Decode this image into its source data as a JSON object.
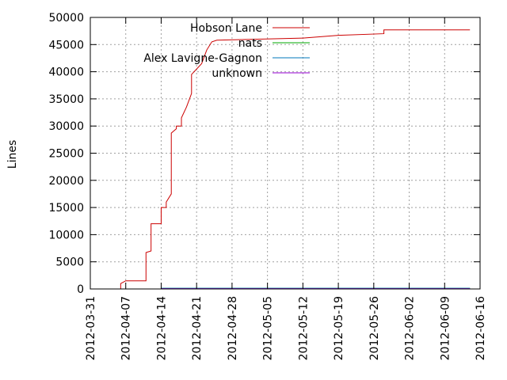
{
  "chart_data": {
    "type": "line",
    "title": "",
    "xlabel": "",
    "ylabel": "Lines",
    "ylim": [
      0,
      50000
    ],
    "yticks": [
      "0",
      "5000",
      "10000",
      "15000",
      "20000",
      "25000",
      "30000",
      "35000",
      "40000",
      "45000",
      "50000"
    ],
    "xlim": [
      "2012-03-31",
      "2012-06-16"
    ],
    "xticks": [
      "2012-03-31",
      "2012-04-07",
      "2012-04-14",
      "2012-04-21",
      "2012-04-28",
      "2012-05-05",
      "2012-05-12",
      "2012-05-19",
      "2012-05-26",
      "2012-06-02",
      "2012-06-09",
      "2012-06-16"
    ],
    "grid": true,
    "legend_position": "top",
    "series": [
      {
        "name": "Hobson Lane",
        "color": "#cc0000",
        "points": [
          [
            "2012-04-05",
            0
          ],
          [
            "2012-04-06",
            0
          ],
          [
            "2012-04-06",
            1000
          ],
          [
            "2012-04-07",
            1500
          ],
          [
            "2012-04-11",
            1500
          ],
          [
            "2012-04-11",
            2000
          ],
          [
            "2012-04-11",
            2500
          ],
          [
            "2012-04-11",
            6700
          ],
          [
            "2012-04-12",
            7000
          ],
          [
            "2012-04-12",
            12000
          ],
          [
            "2012-04-14",
            12000
          ],
          [
            "2012-04-14",
            15000
          ],
          [
            "2012-04-15",
            15000
          ],
          [
            "2012-04-15",
            16000
          ],
          [
            "2012-04-16",
            17500
          ],
          [
            "2012-04-16",
            28700
          ],
          [
            "2012-04-17",
            29500
          ],
          [
            "2012-04-17",
            30000
          ],
          [
            "2012-04-18",
            30000
          ],
          [
            "2012-04-18",
            31500
          ],
          [
            "2012-04-19",
            33500
          ],
          [
            "2012-04-20",
            36000
          ],
          [
            "2012-04-20",
            39500
          ],
          [
            "2012-04-22",
            41500
          ],
          [
            "2012-04-23",
            44000
          ],
          [
            "2012-04-24",
            45500
          ],
          [
            "2012-04-25",
            45800
          ],
          [
            "2012-05-12",
            46200
          ],
          [
            "2012-05-19",
            46700
          ],
          [
            "2012-05-28",
            47000
          ],
          [
            "2012-05-28",
            47700
          ],
          [
            "2012-06-14",
            47700
          ]
        ]
      },
      {
        "name": "nats",
        "color": "#00aa00",
        "points": [
          [
            "2012-04-14",
            100
          ],
          [
            "2012-06-14",
            100
          ]
        ]
      },
      {
        "name": "Alex Lavigne-Gagnon",
        "color": "#0077bb",
        "points": [
          [
            "2012-04-14",
            120
          ],
          [
            "2012-06-14",
            120
          ]
        ]
      },
      {
        "name": "unknown",
        "color": "#9400d3",
        "points": [
          [
            "2012-04-14",
            60
          ],
          [
            "2012-06-14",
            60
          ]
        ]
      }
    ]
  }
}
